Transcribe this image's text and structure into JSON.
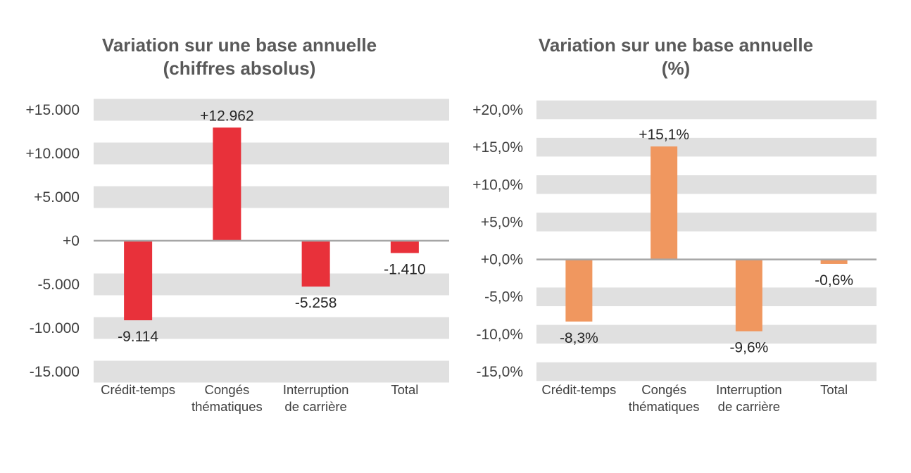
{
  "chart_data": [
    {
      "type": "bar",
      "title": "Variation sur une base annuelle\n(chiffres absolus)",
      "categories": [
        [
          "Crédit-temps"
        ],
        [
          "Congés",
          "thématiques"
        ],
        [
          "Interruption",
          "de carrière"
        ],
        [
          "Total"
        ]
      ],
      "values": [
        -9114,
        12962,
        -5258,
        -1410
      ],
      "data_labels": [
        "-9.114",
        "+12.962",
        "-5.258",
        "-1.410"
      ],
      "yticks": [
        15000,
        10000,
        5000,
        0,
        -5000,
        -10000,
        -15000
      ],
      "ytick_labels": [
        "+15.000",
        "+10.000",
        "+5.000",
        "+0",
        "-5.000",
        "-10.000",
        "-15.000"
      ],
      "ylim": [
        -15000,
        15000
      ],
      "bar_color": "#e8313a",
      "band_color": "#e0e0e0",
      "legend": "none",
      "grid": "alternating horizontal bands"
    },
    {
      "type": "bar",
      "title": "Variation sur une base annuelle\n(%)",
      "categories": [
        [
          "Crédit-temps"
        ],
        [
          "Congés",
          "thématiques"
        ],
        [
          "Interruption",
          "de carrière"
        ],
        [
          "Total"
        ]
      ],
      "values": [
        -8.3,
        15.1,
        -9.6,
        -0.6
      ],
      "data_labels": [
        "-8,3%",
        "+15,1%",
        "-9,6%",
        "-0,6%"
      ],
      "yticks": [
        20,
        15,
        10,
        5,
        0,
        -5,
        -10,
        -15
      ],
      "ytick_labels": [
        "+20,0%",
        "+15,0%",
        "+10,0%",
        "+5,0%",
        "+0,0%",
        "-5,0%",
        "-10,0%",
        "-15,0%"
      ],
      "ylim": [
        -15,
        20
      ],
      "bar_color": "#f0975f",
      "band_color": "#e0e0e0",
      "legend": "none",
      "grid": "alternating horizontal bands"
    }
  ]
}
